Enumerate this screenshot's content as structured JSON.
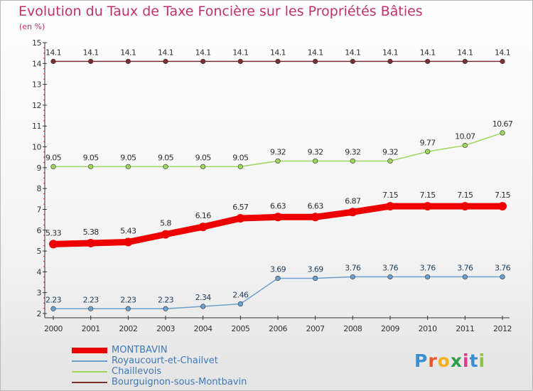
{
  "title": "Evolution du Taux de Taxe Foncière sur les Propriétés Bâties",
  "unit_label": "(en %)",
  "brand": {
    "letters": [
      "P",
      "r",
      "o",
      "x",
      "i",
      "t",
      "i"
    ],
    "colors": [
      "#3a8fd2",
      "#e9582a",
      "#f2b01d",
      "#2e9d4a",
      "#d93a8d",
      "#3a8fd2",
      "#8cc63f"
    ]
  },
  "chart_data": {
    "type": "line",
    "categories": [
      "2000",
      "2001",
      "2002",
      "2003",
      "2004",
      "2005",
      "2006",
      "2007",
      "2008",
      "2009",
      "2010",
      "2011",
      "2012"
    ],
    "ylim": [
      2,
      15
    ],
    "yticks": [
      "2",
      "3",
      "4",
      "5",
      "6",
      "7",
      "8",
      "9",
      "10",
      "11",
      "12",
      "13",
      "14",
      "15"
    ],
    "grid": false,
    "legend_position": "bottom-left",
    "series": [
      {
        "name": "MONTBAVIN",
        "color": "#ee0000",
        "label_color": "#2d2d2d",
        "values": [
          5.33,
          5.38,
          5.43,
          5.8,
          6.16,
          6.57,
          6.63,
          6.63,
          6.87,
          7.15,
          7.15,
          7.15,
          7.15
        ],
        "labels": [
          "5.33",
          "5.38",
          "5.43",
          "5.8",
          "6.16",
          "6.57",
          "6.63",
          "6.63",
          "6.87",
          "7.15",
          "7.15",
          "7.15",
          "7.15"
        ]
      },
      {
        "name": "Royaucourt-et-Chailvet",
        "color": "#6a9fcf",
        "label_color": "#1f3d5c",
        "values": [
          2.23,
          2.23,
          2.23,
          2.23,
          2.34,
          2.46,
          3.69,
          3.69,
          3.76,
          3.76,
          3.76,
          3.76,
          3.76
        ],
        "labels": [
          "2.23",
          "2.23",
          "2.23",
          "2.23",
          "2.34",
          "2.46",
          "3.69",
          "3.69",
          "3.76",
          "3.76",
          "3.76",
          "3.76",
          "3.76"
        ]
      },
      {
        "name": "Chaillevois",
        "color": "#9ed65c",
        "label_color": "#2d2d2d",
        "values": [
          9.05,
          9.05,
          9.05,
          9.05,
          9.05,
          9.05,
          9.32,
          9.32,
          9.32,
          9.32,
          9.77,
          10.07,
          10.67
        ],
        "labels": [
          "9.05",
          "9.05",
          "9.05",
          "9.05",
          "9.05",
          "9.05",
          "9.32",
          "9.32",
          "9.32",
          "9.32",
          "9.77",
          "10.07",
          "10.67"
        ]
      },
      {
        "name": "Bourguignon-sous-Montbavin",
        "color": "#7b3030",
        "label_color": "#2d2d2d",
        "values": [
          14.1,
          14.1,
          14.1,
          14.1,
          14.1,
          14.1,
          14.1,
          14.1,
          14.1,
          14.1,
          14.1,
          14.1,
          14.1
        ],
        "labels": [
          "14.1",
          "14.1",
          "14.1",
          "14.1",
          "14.1",
          "14.1",
          "14.1",
          "14.1",
          "14.1",
          "14.1",
          "14.1",
          "14.1",
          "14.1"
        ]
      }
    ]
  }
}
